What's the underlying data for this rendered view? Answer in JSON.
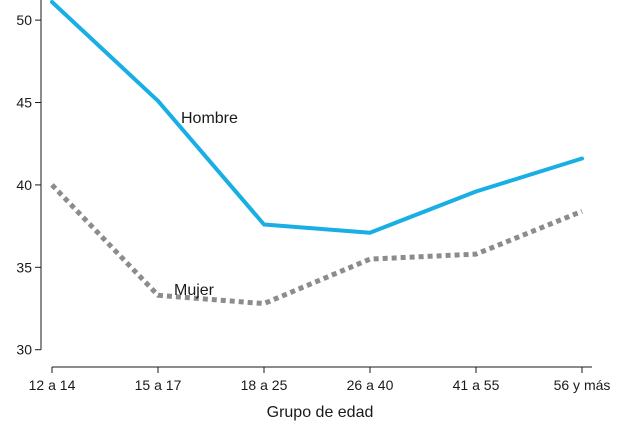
{
  "chart_data": {
    "type": "line",
    "title": "",
    "xlabel": "Grupo de edad",
    "ylabel": "",
    "categories": [
      "12 a 14",
      "15 a 17",
      "18 a 25",
      "26 a 40",
      "41 a 55",
      "56 y más"
    ],
    "y_ticks": [
      "30",
      "35",
      "40",
      "45",
      "50"
    ],
    "ylim": [
      29.8,
      51.1
    ],
    "grid": false,
    "series": [
      {
        "name": "Hombre",
        "values": [
          51.1,
          45.1,
          37.6,
          37.1,
          39.6,
          41.6
        ],
        "color": "#19aee4",
        "style": "solid"
      },
      {
        "name": "Mujer",
        "values": [
          40.0,
          33.3,
          32.8,
          35.5,
          35.8,
          38.4
        ],
        "color": "#8c8c8c",
        "style": "dotted"
      }
    ]
  }
}
